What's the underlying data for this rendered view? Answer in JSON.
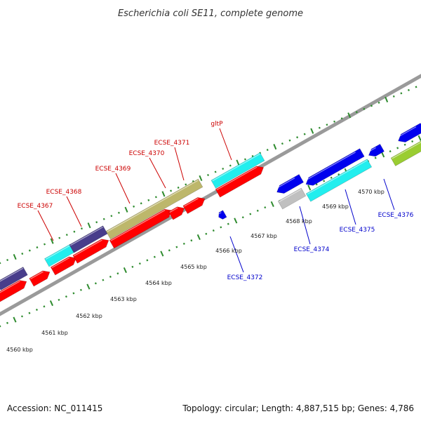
{
  "title": "Escherichia coli SE11, complete genome",
  "footer": {
    "accession": "Accession: NC_011415",
    "summary": "Topology: circular; Length: 4,887,515 bp; Genes: 4,786"
  },
  "colors": {
    "background": "#ffffff",
    "forward_gene": "#ff0000",
    "reverse_gene": "#0000ee",
    "forward_label": "#cc0000",
    "reverse_label": "#0000cc",
    "backbone": "#9a9a9a",
    "tick": "#2e8b2e",
    "khaki": "#bdb76b",
    "cyan": "#22eeee",
    "slate": "#483d8b",
    "gray": "#c0c0c0",
    "lime": "#9acd32"
  },
  "axis": {
    "unit": "kbp",
    "ticks": [
      "4560 kbp",
      "4561 kbp",
      "4562 kbp",
      "4563 kbp",
      "4564 kbp",
      "4565 kbp",
      "4566 kbp",
      "4567 kbp",
      "4568 kbp",
      "4569 kbp",
      "4570 kbp"
    ]
  },
  "genes_forward": [
    {
      "name": "ECSE_4367",
      "color": "#ff0000"
    },
    {
      "name": "ECSE_4368",
      "color": "#ff0000"
    },
    {
      "name": "ECSE_4369",
      "color": "#ff0000"
    },
    {
      "name": "ECSE_4370",
      "color": "#ff0000"
    },
    {
      "name": "ECSE_4371",
      "color": "#ff0000"
    },
    {
      "name": "gltP",
      "color": "#ff0000"
    }
  ],
  "genes_reverse": [
    {
      "name": "ECSE_4372",
      "color": "#0000ee"
    },
    {
      "name": "ECSE_4374",
      "color": "#0000ee"
    },
    {
      "name": "ECSE_4375",
      "color": "#0000ee"
    },
    {
      "name": "ECSE_4376",
      "color": "#0000ee"
    }
  ]
}
